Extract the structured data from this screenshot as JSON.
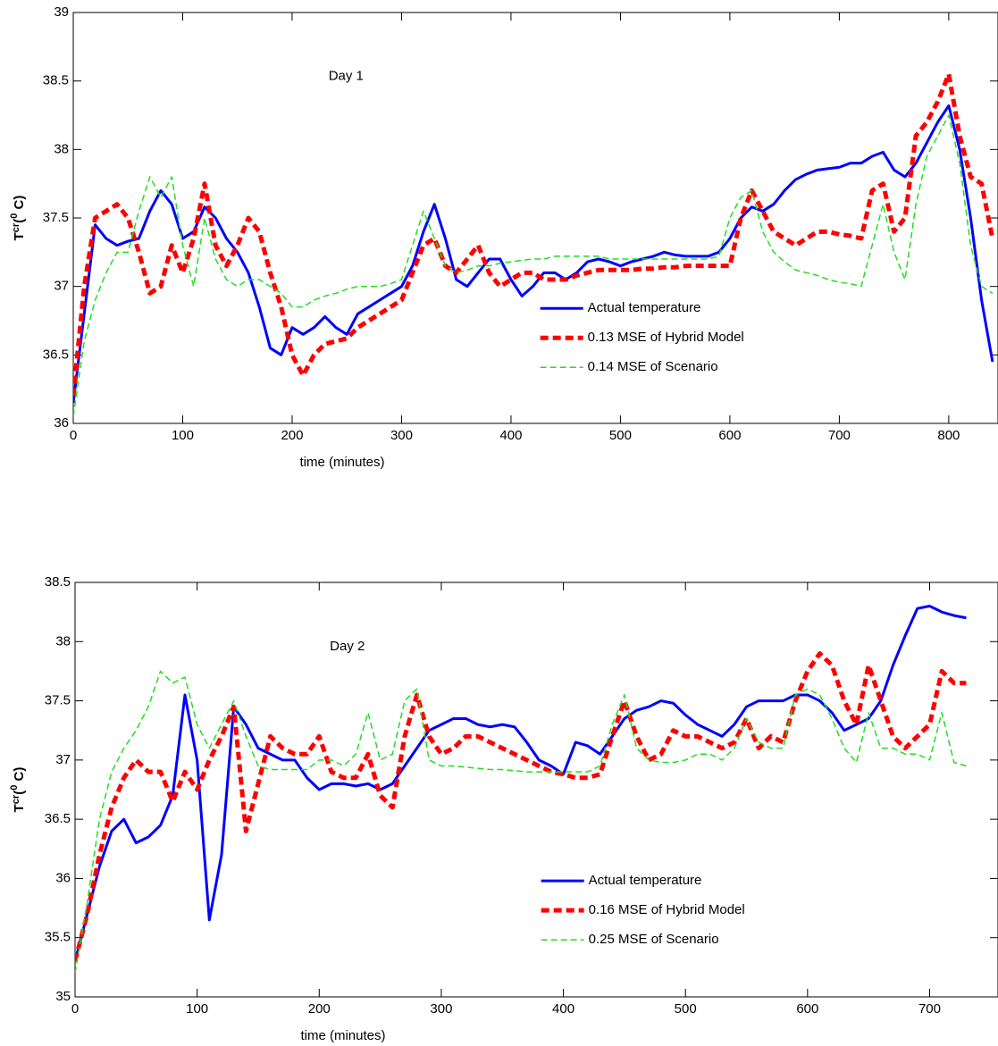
{
  "chart_data": [
    {
      "type": "line",
      "annotation": "Day 1",
      "xlabel": "time (minutes)",
      "ylabel": [
        "T",
        "cr",
        "(",
        "0",
        " C)"
      ],
      "xlim": [
        0,
        845
      ],
      "ylim": [
        36,
        39
      ],
      "xticks": [
        0,
        100,
        200,
        300,
        400,
        500,
        600,
        700,
        800
      ],
      "yticks": [
        36,
        36.5,
        37,
        37.5,
        38,
        38.5,
        39
      ],
      "legend": "lower center",
      "grid": false,
      "x": [
        0,
        10,
        20,
        30,
        40,
        50,
        60,
        70,
        80,
        90,
        100,
        110,
        120,
        130,
        140,
        150,
        160,
        170,
        180,
        190,
        200,
        210,
        220,
        230,
        240,
        250,
        260,
        270,
        280,
        290,
        300,
        310,
        320,
        330,
        340,
        350,
        360,
        370,
        380,
        390,
        400,
        410,
        420,
        430,
        440,
        450,
        460,
        470,
        480,
        490,
        500,
        510,
        520,
        530,
        540,
        550,
        560,
        570,
        580,
        590,
        600,
        610,
        620,
        630,
        640,
        650,
        660,
        670,
        680,
        690,
        700,
        710,
        720,
        730,
        740,
        750,
        760,
        770,
        780,
        790,
        800,
        810,
        820,
        830,
        840
      ],
      "series": [
        {
          "name": "Actual temperature",
          "color": "#0000ff",
          "width": 3,
          "dash": "none",
          "values": [
            36.15,
            36.8,
            37.45,
            37.35,
            37.3,
            37.33,
            37.35,
            37.55,
            37.7,
            37.6,
            37.35,
            37.4,
            37.58,
            37.5,
            37.35,
            37.25,
            37.1,
            36.85,
            36.55,
            36.5,
            36.7,
            36.65,
            36.7,
            36.78,
            36.7,
            36.65,
            36.8,
            36.85,
            36.9,
            36.95,
            37.0,
            37.15,
            37.4,
            37.6,
            37.35,
            37.05,
            37.0,
            37.1,
            37.2,
            37.2,
            37.05,
            36.93,
            37.0,
            37.1,
            37.1,
            37.05,
            37.1,
            37.18,
            37.2,
            37.18,
            37.15,
            37.18,
            37.2,
            37.22,
            37.25,
            37.23,
            37.22,
            37.22,
            37.22,
            37.25,
            37.35,
            37.5,
            37.58,
            37.55,
            37.6,
            37.7,
            37.78,
            37.82,
            37.85,
            37.86,
            37.87,
            37.9,
            37.9,
            37.95,
            37.98,
            37.85,
            37.8,
            37.9,
            38.05,
            38.2,
            38.32,
            38.0,
            37.5,
            36.9,
            36.45
          ]
        },
        {
          "name": "0.13 MSE of Hybrid Model",
          "color": "#ff0000",
          "width": 5,
          "dash": "9 5",
          "values": [
            36.2,
            37.0,
            37.5,
            37.55,
            37.6,
            37.5,
            37.25,
            36.95,
            37.0,
            37.3,
            37.1,
            37.35,
            37.75,
            37.3,
            37.15,
            37.3,
            37.5,
            37.4,
            37.1,
            36.85,
            36.5,
            36.35,
            36.5,
            36.58,
            36.6,
            36.62,
            36.7,
            36.75,
            36.8,
            36.85,
            36.9,
            37.1,
            37.3,
            37.35,
            37.15,
            37.1,
            37.2,
            37.3,
            37.1,
            37.0,
            37.05,
            37.1,
            37.1,
            37.05,
            37.05,
            37.05,
            37.08,
            37.1,
            37.12,
            37.12,
            37.12,
            37.12,
            37.13,
            37.13,
            37.14,
            37.14,
            37.15,
            37.15,
            37.15,
            37.15,
            37.15,
            37.5,
            37.7,
            37.55,
            37.4,
            37.35,
            37.3,
            37.35,
            37.4,
            37.4,
            37.38,
            37.37,
            37.35,
            37.7,
            37.75,
            37.4,
            37.5,
            38.1,
            38.2,
            38.35,
            38.55,
            38.1,
            37.8,
            37.75,
            37.35
          ]
        },
        {
          "name": "0.14 MSE of Scenario",
          "color": "#22dd22",
          "width": 1.5,
          "dash": "7 4",
          "values": [
            36.05,
            36.6,
            36.9,
            37.1,
            37.25,
            37.25,
            37.55,
            37.8,
            37.65,
            37.8,
            37.3,
            37.0,
            37.5,
            37.2,
            37.05,
            37.0,
            37.05,
            37.05,
            37.0,
            36.95,
            36.85,
            36.85,
            36.9,
            36.93,
            36.95,
            36.98,
            37.0,
            37.0,
            37.0,
            37.02,
            37.05,
            37.3,
            37.55,
            37.35,
            37.15,
            37.1,
            37.12,
            37.15,
            37.15,
            37.17,
            37.18,
            37.19,
            37.2,
            37.2,
            37.22,
            37.22,
            37.22,
            37.22,
            37.22,
            37.2,
            37.2,
            37.2,
            37.2,
            37.2,
            37.2,
            37.2,
            37.2,
            37.2,
            37.2,
            37.22,
            37.5,
            37.65,
            37.7,
            37.4,
            37.25,
            37.18,
            37.12,
            37.1,
            37.08,
            37.05,
            37.03,
            37.02,
            37.0,
            37.3,
            37.6,
            37.25,
            37.05,
            37.6,
            37.95,
            38.1,
            38.25,
            37.9,
            37.3,
            37.0,
            36.95
          ]
        }
      ]
    },
    {
      "type": "line",
      "annotation": "Day 2",
      "xlabel": "time (minutes)",
      "ylabel": [
        "T",
        "cr",
        "(",
        "0",
        " C)"
      ],
      "xlim": [
        0,
        756
      ],
      "ylim": [
        35,
        38.5
      ],
      "xticks": [
        0,
        100,
        200,
        300,
        400,
        500,
        600,
        700
      ],
      "yticks": [
        35,
        35.5,
        36,
        36.5,
        37,
        37.5,
        38,
        38.5
      ],
      "legend": "lower center",
      "grid": false,
      "x": [
        0,
        10,
        20,
        30,
        40,
        50,
        60,
        70,
        80,
        90,
        100,
        110,
        120,
        130,
        140,
        150,
        160,
        170,
        180,
        190,
        200,
        210,
        220,
        230,
        240,
        250,
        260,
        270,
        280,
        290,
        300,
        310,
        320,
        330,
        340,
        350,
        360,
        370,
        380,
        390,
        400,
        410,
        420,
        430,
        440,
        450,
        460,
        470,
        480,
        490,
        500,
        510,
        520,
        530,
        540,
        550,
        560,
        570,
        580,
        590,
        600,
        610,
        620,
        630,
        640,
        650,
        660,
        670,
        680,
        690,
        700,
        710,
        720,
        730
      ],
      "series": [
        {
          "name": "Actual temperature",
          "color": "#0000ff",
          "width": 3,
          "dash": "none",
          "values": [
            35.3,
            35.7,
            36.1,
            36.4,
            36.5,
            36.3,
            36.35,
            36.45,
            36.7,
            37.55,
            37.0,
            35.65,
            36.2,
            37.45,
            37.3,
            37.1,
            37.05,
            37.0,
            37.0,
            36.85,
            36.75,
            36.8,
            36.8,
            36.78,
            36.8,
            36.75,
            36.8,
            36.95,
            37.1,
            37.25,
            37.3,
            37.35,
            37.35,
            37.3,
            37.28,
            37.3,
            37.28,
            37.15,
            37.0,
            36.95,
            36.88,
            37.15,
            37.12,
            37.05,
            37.2,
            37.35,
            37.42,
            37.45,
            37.5,
            37.48,
            37.38,
            37.3,
            37.25,
            37.2,
            37.3,
            37.45,
            37.5,
            37.5,
            37.5,
            37.55,
            37.55,
            37.5,
            37.4,
            37.25,
            37.3,
            37.35,
            37.5,
            37.8,
            38.05,
            38.28,
            38.3,
            38.25,
            38.22,
            38.2
          ]
        },
        {
          "name": "0.16 MSE of Hybrid Model",
          "color": "#ff0000",
          "width": 5,
          "dash": "9 5",
          "values": [
            35.3,
            35.7,
            36.2,
            36.6,
            36.85,
            37.0,
            36.9,
            36.9,
            36.65,
            36.9,
            36.75,
            37.0,
            37.2,
            37.45,
            36.4,
            36.8,
            37.2,
            37.1,
            37.05,
            37.05,
            37.2,
            36.9,
            36.85,
            36.85,
            37.05,
            36.7,
            36.6,
            37.2,
            37.55,
            37.2,
            37.05,
            37.1,
            37.2,
            37.2,
            37.15,
            37.1,
            37.05,
            37.0,
            36.95,
            36.9,
            36.88,
            36.85,
            36.85,
            36.88,
            37.2,
            37.5,
            37.2,
            37.0,
            37.05,
            37.25,
            37.2,
            37.2,
            37.15,
            37.1,
            37.15,
            37.35,
            37.1,
            37.2,
            37.15,
            37.5,
            37.75,
            37.9,
            37.8,
            37.5,
            37.3,
            37.8,
            37.5,
            37.2,
            37.1,
            37.2,
            37.3,
            37.75,
            37.65,
            37.65
          ]
        },
        {
          "name": "0.25 MSE of Scenario",
          "color": "#22dd22",
          "width": 1.5,
          "dash": "7 4",
          "values": [
            35.2,
            35.8,
            36.5,
            36.9,
            37.1,
            37.25,
            37.45,
            37.75,
            37.65,
            37.7,
            37.3,
            37.1,
            37.3,
            37.5,
            37.2,
            36.95,
            36.92,
            36.92,
            36.92,
            36.92,
            37.0,
            37.0,
            36.95,
            37.05,
            37.4,
            37.0,
            37.05,
            37.5,
            37.6,
            37.0,
            36.95,
            36.95,
            36.94,
            36.93,
            36.92,
            36.92,
            36.91,
            36.9,
            36.9,
            36.9,
            36.9,
            36.9,
            36.9,
            36.95,
            37.3,
            37.55,
            37.1,
            37.0,
            36.98,
            36.98,
            37.0,
            37.05,
            37.05,
            37.0,
            37.1,
            37.35,
            37.15,
            37.1,
            37.1,
            37.55,
            37.6,
            37.55,
            37.35,
            37.1,
            36.98,
            37.4,
            37.1,
            37.1,
            37.05,
            37.05,
            37.0,
            37.4,
            36.98,
            36.95
          ]
        }
      ]
    }
  ]
}
